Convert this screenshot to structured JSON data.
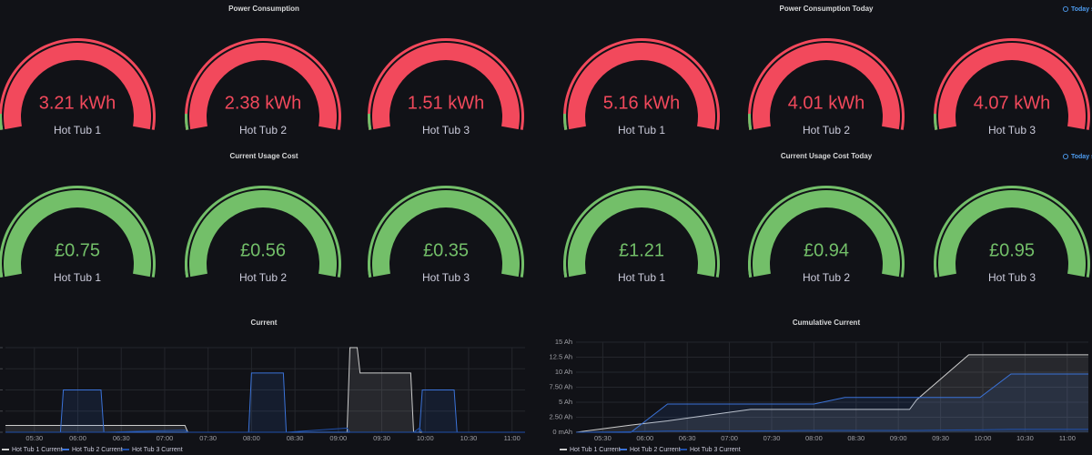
{
  "panels": [
    {
      "title": "Power Consumption",
      "color": "#f2495c",
      "threshold_color": "#73bf69",
      "gauges": [
        {
          "value": "3.21 kWh",
          "label": "Hot Tub 1"
        },
        {
          "value": "2.38 kWh",
          "label": "Hot Tub 2"
        },
        {
          "value": "1.51 kWh",
          "label": "Hot Tub 3"
        }
      ]
    },
    {
      "title": "Power Consumption Today",
      "link": "Today so",
      "color": "#f2495c",
      "threshold_color": "#73bf69",
      "gauges": [
        {
          "value": "5.16 kWh",
          "label": "Hot Tub 1"
        },
        {
          "value": "4.01 kWh",
          "label": "Hot Tub 2"
        },
        {
          "value": "4.07 kWh",
          "label": "Hot Tub 3"
        }
      ]
    },
    {
      "title": "Current Usage Cost",
      "color": "#73bf69",
      "threshold_color": "#73bf69",
      "gauges": [
        {
          "value": "£0.75",
          "label": "Hot Tub 1"
        },
        {
          "value": "£0.56",
          "label": "Hot Tub 2"
        },
        {
          "value": "£0.35",
          "label": "Hot Tub 3"
        }
      ]
    },
    {
      "title": "Current Usage Cost Today",
      "link": "Today s",
      "color": "#73bf69",
      "threshold_color": "#73bf69",
      "gauges": [
        {
          "value": "£1.21",
          "label": "Hot Tub 1"
        },
        {
          "value": "£0.94",
          "label": "Hot Tub 2"
        },
        {
          "value": "£0.95",
          "label": "Hot Tub 3"
        }
      ]
    }
  ],
  "chart_data": [
    {
      "type": "line",
      "title": "Current",
      "tick_labels": false,
      "grid": true,
      "x": [
        "05:10",
        "05:48",
        "05:50",
        "06:16",
        "06:18",
        "07:14",
        "07:16",
        "07:58",
        "08:00",
        "08:22",
        "08:24",
        "09:06",
        "09:08",
        "09:13",
        "09:15",
        "09:50",
        "09:52",
        "09:56",
        "09:58",
        "10:20",
        "10:22",
        "11:09"
      ],
      "xlim": [
        "05:10",
        "11:09"
      ],
      "xticks": [
        "05:30",
        "06:00",
        "06:30",
        "07:00",
        "07:30",
        "08:00",
        "08:30",
        "09:00",
        "09:30",
        "10:00",
        "10:30",
        "11:00"
      ],
      "ylim": [
        0,
        20
      ],
      "yticks": [
        0,
        5,
        10,
        15,
        20
      ],
      "series": [
        {
          "name": "Hot Tub 1 Current",
          "color": "#cccccc",
          "values": [
            1.6,
            1.6,
            1.6,
            1.6,
            1.6,
            1.6,
            0,
            0,
            0,
            0,
            0,
            0,
            20,
            20,
            14,
            14,
            0,
            0,
            0,
            0,
            0,
            0
          ]
        },
        {
          "name": "Hot Tub 2 Current",
          "color": "#3b73d9",
          "values": [
            0,
            0,
            10,
            10,
            0,
            0,
            0,
            0,
            14,
            14,
            0,
            0,
            0,
            0,
            0,
            0,
            0,
            0,
            10,
            10,
            0,
            0
          ]
        },
        {
          "name": "Hot Tub 3 Current",
          "color": "#1f4fa8",
          "values": [
            0,
            0,
            0,
            0,
            0,
            0.5,
            0,
            0,
            0,
            0,
            0,
            1,
            0,
            0,
            0,
            0,
            0,
            1,
            0,
            0,
            0,
            0
          ]
        }
      ]
    },
    {
      "type": "line",
      "title": "Cumulative Current",
      "tick_labels": true,
      "grid": true,
      "x": [
        "05:11",
        "05:50",
        "06:16",
        "07:15",
        "08:00",
        "08:22",
        "09:08",
        "09:13",
        "09:50",
        "09:58",
        "10:20",
        "11:15"
      ],
      "xlim": [
        "05:11",
        "11:15"
      ],
      "xticks": [
        "05:30",
        "06:00",
        "06:30",
        "07:00",
        "07:30",
        "08:00",
        "08:30",
        "09:00",
        "09:30",
        "10:00",
        "10:30",
        "11:00"
      ],
      "ylim": [
        0,
        15
      ],
      "yticks": [
        {
          "value": 0,
          "label": "0 mAh"
        },
        {
          "value": 2.5,
          "label": "2.50 Ah"
        },
        {
          "value": 5,
          "label": "5 Ah"
        },
        {
          "value": 7.5,
          "label": "7.50 Ah"
        },
        {
          "value": 10,
          "label": "10 Ah"
        },
        {
          "value": 12.5,
          "label": "12.5 Ah"
        },
        {
          "value": 15,
          "label": "15 Ah"
        }
      ],
      "series": [
        {
          "name": "Hot Tub 1 Current",
          "color": "#cccccc",
          "values": [
            0,
            1.2,
            1.9,
            3.8,
            3.8,
            3.8,
            3.8,
            5.4,
            12.9,
            12.9,
            12.9,
            12.9
          ]
        },
        {
          "name": "Hot Tub 2 Current",
          "color": "#3b73d9",
          "values": [
            0,
            0,
            4.7,
            4.7,
            4.7,
            5.8,
            5.8,
            5.8,
            5.8,
            5.8,
            9.7,
            9.7
          ]
        },
        {
          "name": "Hot Tub 3 Current",
          "color": "#1f4fa8",
          "values": [
            0,
            0.1,
            0.2,
            0.2,
            0.3,
            0.3,
            0.3,
            0.3,
            0.4,
            0.4,
            0.5,
            0.5
          ]
        }
      ]
    }
  ]
}
